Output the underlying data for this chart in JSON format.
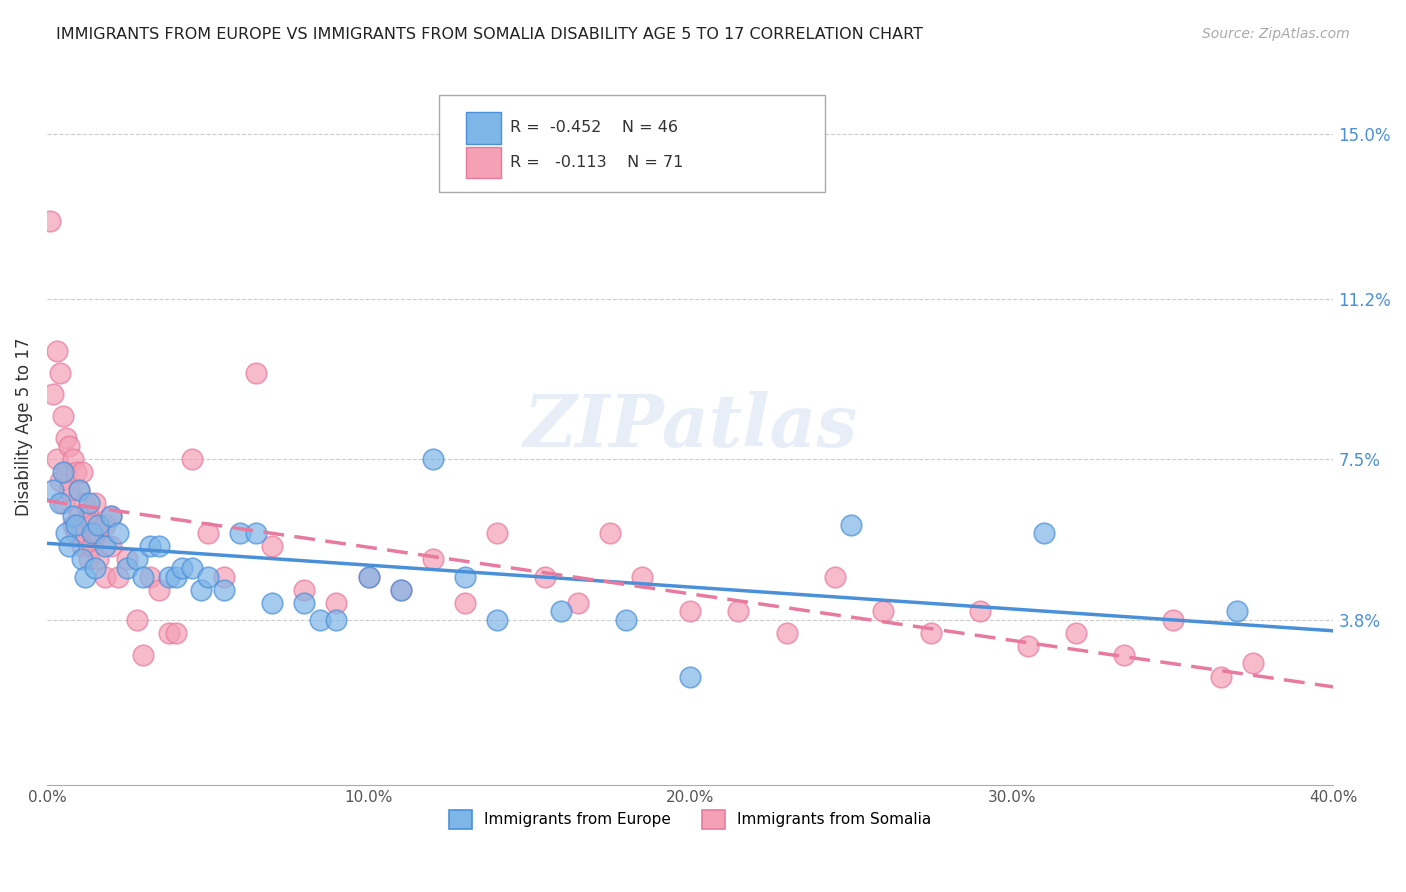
{
  "title": "IMMIGRANTS FROM EUROPE VS IMMIGRANTS FROM SOMALIA DISABILITY AGE 5 TO 17 CORRELATION CHART",
  "source": "Source: ZipAtlas.com",
  "ylabel": "Disability Age 5 to 17",
  "yticks": [
    "15.0%",
    "11.2%",
    "7.5%",
    "3.8%"
  ],
  "ytick_vals": [
    0.15,
    0.112,
    0.075,
    0.038
  ],
  "xlim": [
    0.0,
    0.4
  ],
  "ylim": [
    0.0,
    0.165
  ],
  "europe_color": "#7eb6e8",
  "somalia_color": "#f4a0b5",
  "europe_line_color": "#4a90d9",
  "somalia_line_color": "#e87a9f",
  "watermark": "ZIPatlas",
  "europe_points_x": [
    0.002,
    0.004,
    0.005,
    0.006,
    0.007,
    0.008,
    0.009,
    0.01,
    0.011,
    0.012,
    0.013,
    0.014,
    0.015,
    0.016,
    0.018,
    0.02,
    0.022,
    0.025,
    0.028,
    0.03,
    0.032,
    0.035,
    0.038,
    0.04,
    0.042,
    0.045,
    0.048,
    0.05,
    0.055,
    0.06,
    0.065,
    0.07,
    0.08,
    0.085,
    0.09,
    0.1,
    0.11,
    0.12,
    0.13,
    0.14,
    0.16,
    0.18,
    0.2,
    0.25,
    0.31,
    0.37
  ],
  "europe_points_y": [
    0.068,
    0.065,
    0.072,
    0.058,
    0.055,
    0.062,
    0.06,
    0.068,
    0.052,
    0.048,
    0.065,
    0.058,
    0.05,
    0.06,
    0.055,
    0.062,
    0.058,
    0.05,
    0.052,
    0.048,
    0.055,
    0.055,
    0.048,
    0.048,
    0.05,
    0.05,
    0.045,
    0.048,
    0.045,
    0.058,
    0.058,
    0.042,
    0.042,
    0.038,
    0.038,
    0.048,
    0.045,
    0.075,
    0.048,
    0.038,
    0.04,
    0.038,
    0.025,
    0.06,
    0.058,
    0.04
  ],
  "somalia_points_x": [
    0.001,
    0.002,
    0.003,
    0.003,
    0.004,
    0.004,
    0.005,
    0.005,
    0.006,
    0.006,
    0.007,
    0.007,
    0.008,
    0.008,
    0.009,
    0.009,
    0.01,
    0.01,
    0.011,
    0.011,
    0.012,
    0.012,
    0.013,
    0.013,
    0.014,
    0.014,
    0.015,
    0.015,
    0.016,
    0.016,
    0.018,
    0.018,
    0.02,
    0.02,
    0.022,
    0.025,
    0.028,
    0.03,
    0.032,
    0.035,
    0.038,
    0.04,
    0.045,
    0.05,
    0.055,
    0.065,
    0.07,
    0.08,
    0.09,
    0.1,
    0.11,
    0.12,
    0.13,
    0.14,
    0.155,
    0.165,
    0.175,
    0.185,
    0.2,
    0.215,
    0.23,
    0.245,
    0.26,
    0.275,
    0.29,
    0.305,
    0.32,
    0.335,
    0.35,
    0.365,
    0.375
  ],
  "somalia_points_y": [
    0.13,
    0.09,
    0.1,
    0.075,
    0.095,
    0.07,
    0.085,
    0.065,
    0.08,
    0.072,
    0.078,
    0.068,
    0.075,
    0.06,
    0.072,
    0.058,
    0.068,
    0.062,
    0.072,
    0.055,
    0.065,
    0.058,
    0.062,
    0.052,
    0.06,
    0.055,
    0.058,
    0.065,
    0.058,
    0.052,
    0.06,
    0.048,
    0.062,
    0.055,
    0.048,
    0.052,
    0.038,
    0.03,
    0.048,
    0.045,
    0.035,
    0.035,
    0.075,
    0.058,
    0.048,
    0.095,
    0.055,
    0.045,
    0.042,
    0.048,
    0.045,
    0.052,
    0.042,
    0.058,
    0.048,
    0.042,
    0.058,
    0.048,
    0.04,
    0.04,
    0.035,
    0.048,
    0.04,
    0.035,
    0.04,
    0.032,
    0.035,
    0.03,
    0.038,
    0.025,
    0.028
  ]
}
